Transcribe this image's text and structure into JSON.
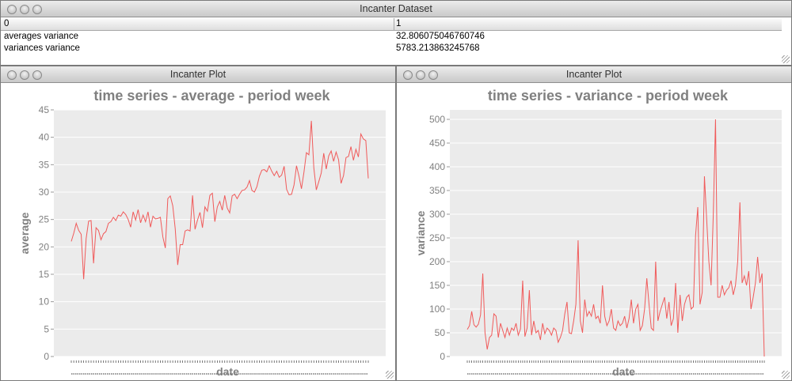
{
  "dataset_window": {
    "title": "Incanter Dataset",
    "headers": [
      "0",
      "1"
    ],
    "rows": [
      [
        "averages variance",
        "32.806075046760746"
      ],
      [
        "variances variance",
        "5783.213863245768"
      ]
    ]
  },
  "plot_windows": [
    {
      "title": "Incanter Plot"
    },
    {
      "title": "Incanter Plot"
    }
  ],
  "colors": {
    "series": "#f05a5a",
    "plot_bg": "#ebebeb",
    "axis_text": "#808080"
  },
  "chart_data": [
    {
      "type": "line",
      "title": "time series - average - period week",
      "xlabel": "date",
      "ylabel": "average",
      "ylim": [
        0,
        45
      ],
      "yticks": [
        0,
        5,
        10,
        15,
        20,
        25,
        30,
        35,
        40,
        45
      ],
      "grid": true,
      "legend": "none",
      "series": [
        {
          "values": [
            21.0,
            22.5,
            24.3,
            23.0,
            22.3,
            14.1,
            21.5,
            24.7,
            24.8,
            17.0,
            23.5,
            23.0,
            21.3,
            22.4,
            22.8,
            24.3,
            24.6,
            25.4,
            24.8,
            25.8,
            25.6,
            26.4,
            25.9,
            25.0,
            23.6,
            26.4,
            24.9,
            26.8,
            24.4,
            25.8,
            24.6,
            26.4,
            23.6,
            25.6,
            25.1,
            25.2,
            25.4,
            21.8,
            19.8,
            28.8,
            29.3,
            27.5,
            23.3,
            16.7,
            20.4,
            20.4,
            22.9,
            23.1,
            22.9,
            29.4,
            23.2,
            24.9,
            26.3,
            23.5,
            27.3,
            26.5,
            29.4,
            29.8,
            24.6,
            27.3,
            28.3,
            26.7,
            29.4,
            27.1,
            26.2,
            29.3,
            29.6,
            28.8,
            29.6,
            30.3,
            30.4,
            30.9,
            32.1,
            30.3,
            30.0,
            31.0,
            32.9,
            34.0,
            34.1,
            33.7,
            34.8,
            33.8,
            33.0,
            33.8,
            32.7,
            33.1,
            34.7,
            30.5,
            29.5,
            29.6,
            31.3,
            34.8,
            32.9,
            30.6,
            33.6,
            37.2,
            36.8,
            43.0,
            34.4,
            30.4,
            31.9,
            33.5,
            37.1,
            34.2,
            36.6,
            37.5,
            35.6,
            37.3,
            35.9,
            31.6,
            33.0,
            36.3,
            36.5,
            38.3,
            35.8,
            37.8,
            36.4,
            40.6,
            39.7,
            39.4,
            32.5
          ]
        }
      ]
    },
    {
      "type": "line",
      "title": "time series - variance - period week",
      "xlabel": "date",
      "ylabel": "variance",
      "ylim": [
        0,
        520
      ],
      "yticks": [
        0,
        50,
        100,
        150,
        200,
        250,
        300,
        350,
        400,
        450,
        500
      ],
      "grid": true,
      "legend": "none",
      "series": [
        {
          "values": [
            57,
            65,
            95,
            67,
            62,
            68,
            88,
            175,
            50,
            15,
            40,
            45,
            90,
            85,
            40,
            70,
            55,
            40,
            60,
            45,
            60,
            55,
            70,
            45,
            58,
            160,
            42,
            60,
            140,
            45,
            75,
            50,
            55,
            35,
            70,
            48,
            60,
            55,
            45,
            60,
            55,
            30,
            40,
            55,
            90,
            115,
            50,
            48,
            75,
            110,
            245,
            75,
            50,
            120,
            85,
            95,
            85,
            110,
            80,
            85,
            70,
            150,
            85,
            65,
            75,
            100,
            60,
            55,
            75,
            65,
            70,
            85,
            60,
            80,
            120,
            70,
            100,
            110,
            55,
            65,
            100,
            165,
            110,
            60,
            55,
            200,
            75,
            95,
            110,
            125,
            80,
            115,
            65,
            80,
            155,
            50,
            130,
            75,
            110,
            125,
            130,
            100,
            105,
            255,
            315,
            110,
            135,
            380,
            290,
            200,
            150,
            300,
            500,
            125,
            125,
            150,
            130,
            140,
            145,
            160,
            130,
            150,
            200,
            325,
            155,
            170,
            150,
            180,
            100,
            125,
            155,
            210,
            155,
            175,
            0
          ]
        }
      ]
    }
  ]
}
